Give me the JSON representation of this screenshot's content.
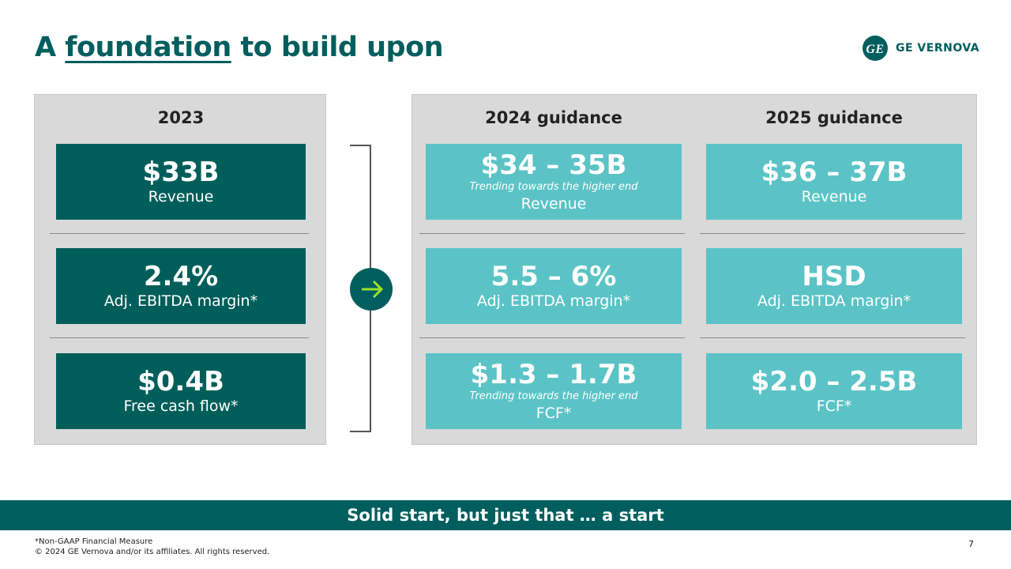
{
  "header": {
    "title": {
      "before": "A",
      "underlined": "foundation",
      "after": "to build upon"
    },
    "logo": "GE VERNOVA"
  },
  "columns": [
    {
      "heading": "2023",
      "cards": [
        {
          "value": "$33B",
          "label": "Revenue"
        },
        {
          "value": "2.4%",
          "label": "Adj. EBITDA margin*"
        },
        {
          "value": "$0.4B",
          "label": "Free cash flow*"
        }
      ]
    },
    {
      "heading": "2024 guidance",
      "cards": [
        {
          "value": "$34 – 35B",
          "note": "Trending towards the higher end",
          "label": "Revenue"
        },
        {
          "value": "5.5 – 6%",
          "label": "Adj. EBITDA margin*"
        },
        {
          "value": "$1.3 – 1.7B",
          "note": "Trending towards the higher end",
          "label": "FCF*"
        }
      ]
    },
    {
      "heading": "2025 guidance",
      "cards": [
        {
          "value": "$36 – 37B",
          "label": "Revenue"
        },
        {
          "value": "HSD",
          "label": "Adj. EBITDA margin*"
        },
        {
          "value": "$2.0 – 2.5B",
          "label": "FCF*"
        }
      ]
    }
  ],
  "banner": "Solid start, but just that … a start",
  "footer": {
    "footnote": "*Non-GAAP Financial Measure",
    "copyright": "© 2024 GE Vernova and/or its affiliates. All rights reserved.",
    "page_number": 7
  }
}
